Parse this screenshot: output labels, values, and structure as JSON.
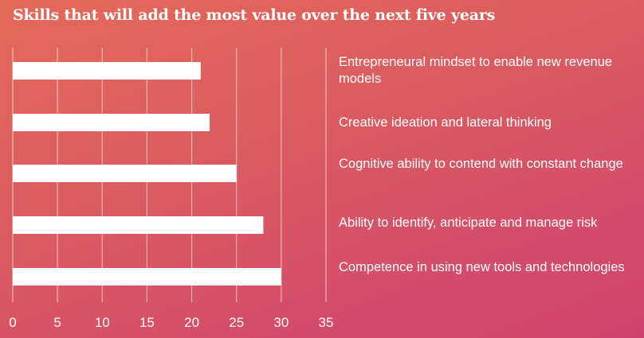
{
  "chart_data": {
    "type": "bar",
    "orientation": "horizontal",
    "title": "Skills that will add the most value over the next five years",
    "categories": [
      "Entrepreneural mindset to enable new revenue models",
      "Creative ideation and lateral thinking",
      "Cognitive ability to contend with constant change",
      "Ability to identify, anticipate and manage risk",
      "Competence in using new tools and technologies"
    ],
    "values": [
      21,
      22,
      25,
      28,
      30
    ],
    "xlim": [
      0,
      35
    ],
    "xticks": [
      "0",
      "5",
      "10",
      "15",
      "20",
      "25",
      "30",
      "35"
    ],
    "grid": true,
    "bar_color": "#ffffff",
    "background": [
      "#e46a58",
      "#d0426e"
    ]
  }
}
